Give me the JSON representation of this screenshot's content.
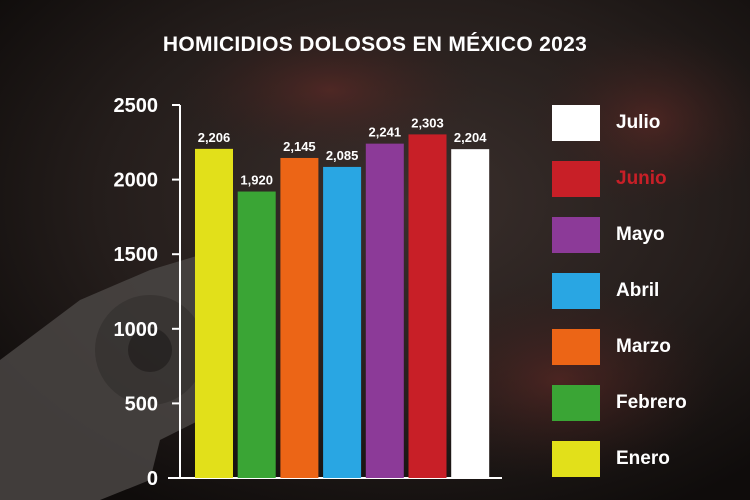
{
  "chart_data": {
    "type": "bar",
    "title": "HOMICIDIOS DOLOSOS EN MÉXICO 2023",
    "categories": [
      "Enero",
      "Febrero",
      "Marzo",
      "Abril",
      "Mayo",
      "Junio",
      "Julio"
    ],
    "values": [
      2206,
      1920,
      2145,
      2085,
      2241,
      2303,
      2204
    ],
    "value_labels": [
      "2,206",
      "1,920",
      "2,145",
      "2,085",
      "2,241",
      "2,303",
      "2,204"
    ],
    "colors": [
      "#e2e01a",
      "#3aa535",
      "#ec6516",
      "#29a6e3",
      "#8c3a98",
      "#c81f27",
      "#ffffff"
    ],
    "yticks": [
      "0",
      "500",
      "1000",
      "1500",
      "2000",
      "2500"
    ],
    "ylim": [
      0,
      2500
    ],
    "legend_placement": "right",
    "legend": [
      {
        "label": "Julio",
        "color": "#ffffff"
      },
      {
        "label": "Junio",
        "color": "#c81f27"
      },
      {
        "label": "Mayo",
        "color": "#8c3a98"
      },
      {
        "label": "Abril",
        "color": "#29a6e3"
      },
      {
        "label": "Marzo",
        "color": "#ec6516"
      },
      {
        "label": "Febrero",
        "color": "#3aa535"
      },
      {
        "label": "Enero",
        "color": "#e2e01a"
      }
    ],
    "highlight_label_color": "#c81f27"
  }
}
